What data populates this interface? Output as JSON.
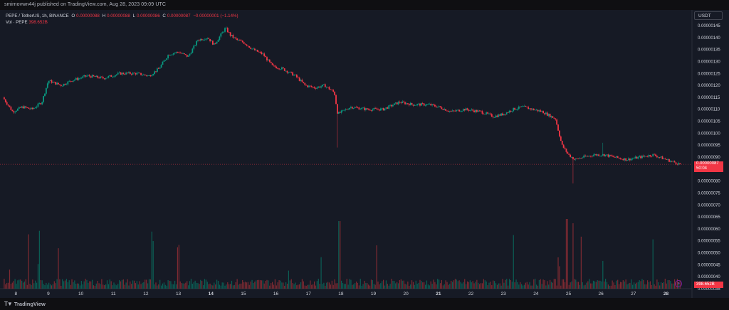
{
  "publisher_line": "smirnovwn44j published on TradingView.com, Aug 28, 2023 09:09 UTC",
  "legend": {
    "symbol": "PEPE / TetherUS, 1h, BINANCE",
    "o_label": "O",
    "o_value": "0.00000088",
    "h_label": "H",
    "h_value": "0.00000088",
    "l_label": "L",
    "l_value": "0.00000086",
    "c_label": "C",
    "c_value": "0.00000087",
    "change": "−0.00000001 (−1.14%)",
    "vol_label": "Vol · PEPE",
    "vol_value": "398.652B"
  },
  "currency_button": "USDT",
  "price_tag": {
    "price": "0.00000087",
    "countdown": "50:04"
  },
  "volume_tag": "398.652B",
  "brand": "TradingView",
  "colors": {
    "up": "#089981",
    "down": "#f23645",
    "background": "#161a25",
    "grid": "#1f2330",
    "axis_text": "#d1d4dc",
    "volume_up": "#0b5f55",
    "volume_down": "#7e2a32"
  },
  "icons": {
    "goto_realtime": "goto-realtime-icon",
    "logo": "tradingview-logo-icon"
  },
  "chart_data": {
    "type": "candlestick",
    "title": "PEPE / TetherUS, 1h, BINANCE",
    "y_axis": {
      "unit": "USDT",
      "ylim": [
        7.5e-08,
        1.48e-07
      ],
      "tick_labels": [
        "0.00000145",
        "0.00000140",
        "0.00000135",
        "0.00000130",
        "0.00000125",
        "0.00000120",
        "0.00000115",
        "0.00000110",
        "0.00000105",
        "0.00000100",
        "0.00000095",
        "0.00000090",
        "0.00000085",
        "0.00000080",
        "0.00000075",
        "0.00000070",
        "0.00000065",
        "0.00000060",
        "0.00000055",
        "0.00000050",
        "0.00000045",
        "0.00000040",
        "0.00000035"
      ],
      "tick_values": [
        1.45,
        1.4,
        1.35,
        1.3,
        1.25,
        1.2,
        1.15,
        1.1,
        1.05,
        1.0,
        0.95,
        0.9,
        0.85,
        0.8,
        0.75,
        0.7,
        0.65,
        0.6,
        0.55,
        0.5,
        0.45,
        0.4,
        0.35
      ],
      "tick_scale": "1e-6"
    },
    "x_axis": {
      "tick_labels": [
        "8",
        "9",
        "10",
        "11",
        "12",
        "13",
        "14",
        "15",
        "16",
        "17",
        "18",
        "19",
        "20",
        "21",
        "22",
        "23",
        "24",
        "25",
        "26",
        "27",
        "28"
      ],
      "bold_ticks": [
        "14",
        "21",
        "28"
      ],
      "x_start_day": 7.6,
      "x_end_day": 28.45
    },
    "price_anchors_day_close": [
      [
        7.6,
        1.15
      ],
      [
        7.9,
        1.09
      ],
      [
        8.2,
        1.11
      ],
      [
        8.5,
        1.1
      ],
      [
        8.8,
        1.13
      ],
      [
        9.0,
        1.22
      ],
      [
        9.4,
        1.2
      ],
      [
        9.7,
        1.22
      ],
      [
        10.2,
        1.24
      ],
      [
        10.7,
        1.23
      ],
      [
        11.2,
        1.25
      ],
      [
        11.7,
        1.25
      ],
      [
        12.1,
        1.24
      ],
      [
        12.4,
        1.27
      ],
      [
        12.7,
        1.33
      ],
      [
        13.0,
        1.34
      ],
      [
        13.3,
        1.32
      ],
      [
        13.6,
        1.39
      ],
      [
        13.9,
        1.4
      ],
      [
        14.1,
        1.37
      ],
      [
        14.3,
        1.41
      ],
      [
        14.45,
        1.44
      ],
      [
        14.6,
        1.41
      ],
      [
        14.8,
        1.39
      ],
      [
        15.0,
        1.38
      ],
      [
        15.3,
        1.35
      ],
      [
        15.6,
        1.33
      ],
      [
        15.9,
        1.28
      ],
      [
        16.2,
        1.27
      ],
      [
        16.6,
        1.24
      ],
      [
        16.9,
        1.2
      ],
      [
        17.2,
        1.19
      ],
      [
        17.5,
        1.2
      ],
      [
        17.8,
        1.17
      ],
      [
        17.9,
        1.08
      ],
      [
        18.3,
        1.11
      ],
      [
        18.8,
        1.1
      ],
      [
        19.3,
        1.1
      ],
      [
        19.8,
        1.13
      ],
      [
        20.2,
        1.12
      ],
      [
        20.7,
        1.12
      ],
      [
        21.0,
        1.11
      ],
      [
        21.4,
        1.09
      ],
      [
        21.8,
        1.1
      ],
      [
        22.3,
        1.09
      ],
      [
        22.7,
        1.07
      ],
      [
        23.0,
        1.08
      ],
      [
        23.3,
        1.1
      ],
      [
        23.6,
        1.11
      ],
      [
        23.9,
        1.1
      ],
      [
        24.2,
        1.09
      ],
      [
        24.6,
        1.06
      ],
      [
        24.8,
        0.95
      ],
      [
        25.0,
        0.91
      ],
      [
        25.2,
        0.89
      ],
      [
        25.45,
        0.9
      ],
      [
        25.8,
        0.91
      ],
      [
        26.1,
        0.91
      ],
      [
        26.4,
        0.9
      ],
      [
        26.8,
        0.89
      ],
      [
        27.2,
        0.9
      ],
      [
        27.6,
        0.91
      ],
      [
        28.0,
        0.89
      ],
      [
        28.45,
        0.87
      ]
    ],
    "volume_pane": {
      "series_name": "Vol · PEPE",
      "last_value": "398.652B",
      "spike_days": [
        7.8,
        8.4,
        8.7,
        9.3,
        12.2,
        13.0,
        16.4,
        17.4,
        17.95,
        19.1,
        23.3,
        24.7,
        24.95,
        25.15,
        25.4,
        26.05,
        27.6
      ]
    },
    "legend_placement": "top-left",
    "grid": true
  }
}
